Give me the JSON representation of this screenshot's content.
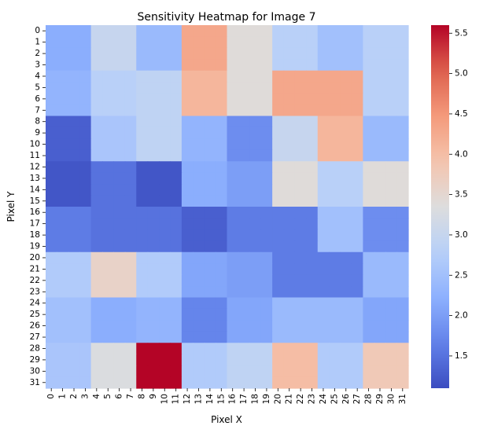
{
  "chart_data": {
    "type": "heatmap",
    "title": "Sensitivity Heatmap for Image 7",
    "xlabel": "Pixel X",
    "ylabel": "Pixel Y",
    "colormap": "coolwarm",
    "vmin": 1.1,
    "vmax": 5.6,
    "x_ticks": [
      "0",
      "1",
      "2",
      "3",
      "4",
      "5",
      "6",
      "7",
      "8",
      "9",
      "10",
      "11",
      "12",
      "13",
      "14",
      "15",
      "16",
      "17",
      "18",
      "19",
      "20",
      "21",
      "22",
      "23",
      "24",
      "25",
      "26",
      "27",
      "28",
      "29",
      "30",
      "31"
    ],
    "y_ticks": [
      "0",
      "1",
      "2",
      "3",
      "4",
      "5",
      "6",
      "7",
      "8",
      "9",
      "10",
      "11",
      "12",
      "13",
      "14",
      "15",
      "16",
      "17",
      "18",
      "19",
      "20",
      "21",
      "22",
      "23",
      "24",
      "25",
      "26",
      "27",
      "28",
      "29",
      "30",
      "31"
    ],
    "colorbar_ticks": [
      "1.5",
      "2.0",
      "2.5",
      "3.0",
      "3.5",
      "4.0",
      "4.5",
      "5.0",
      "5.5"
    ],
    "block_size": 4,
    "block_values": [
      [
        2.2,
        3.0,
        2.4,
        4.3,
        3.4,
        2.8,
        2.5,
        2.8
      ],
      [
        2.3,
        2.8,
        2.9,
        4.1,
        3.4,
        4.3,
        4.3,
        2.8
      ],
      [
        1.3,
        2.6,
        2.9,
        2.3,
        1.8,
        3.0,
        4.1,
        2.4
      ],
      [
        1.2,
        1.5,
        1.2,
        2.2,
        2.0,
        3.4,
        2.8,
        3.4
      ],
      [
        1.6,
        1.5,
        1.5,
        1.3,
        1.6,
        1.6,
        2.5,
        1.8
      ],
      [
        2.7,
        3.6,
        2.7,
        2.1,
        2.0,
        1.6,
        1.6,
        2.4
      ],
      [
        2.5,
        2.2,
        2.3,
        1.7,
        2.1,
        2.4,
        2.4,
        2.1
      ],
      [
        2.6,
        3.3,
        5.6,
        2.7,
        2.9,
        4.0,
        2.7,
        3.8
      ]
    ]
  }
}
